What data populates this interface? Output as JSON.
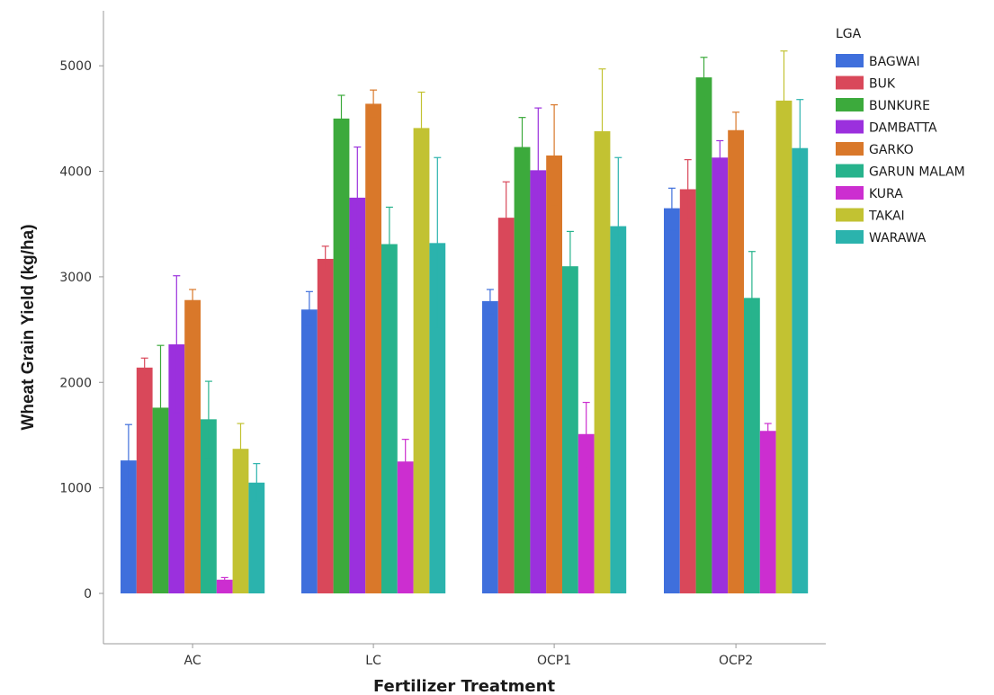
{
  "chart_data": {
    "type": "bar",
    "xlabel": "Fertilizer Treatment",
    "ylabel": "Wheat Grain Yield (kg/ha)",
    "categories": [
      "AC",
      "LC",
      "OCP1",
      "OCP2"
    ],
    "yticks": [
      0,
      1000,
      2000,
      3000,
      4000,
      5000
    ],
    "ylim": [
      -480,
      5500
    ],
    "grid": false,
    "legend": {
      "title": "LGA",
      "placement": "right"
    },
    "error_bars": true,
    "series": [
      {
        "name": "BAGWAI",
        "color": "#3f6fdc",
        "values": [
          1260,
          2690,
          2770,
          3650
        ],
        "err_low": [
          910,
          2540,
          2650,
          3440
        ],
        "err_high": [
          1600,
          2860,
          2880,
          3840
        ]
      },
      {
        "name": "BUK",
        "color": "#d9485a",
        "values": [
          2140,
          3170,
          3560,
          3830
        ],
        "err_low": [
          2060,
          3060,
          3230,
          3550
        ],
        "err_high": [
          2230,
          3290,
          3900,
          4110
        ]
      },
      {
        "name": "BUNKURE",
        "color": "#3caa3c",
        "values": [
          1760,
          4500,
          4230,
          4890
        ],
        "err_low": [
          1170,
          4280,
          3970,
          4700
        ],
        "err_high": [
          2350,
          4720,
          4510,
          5080
        ]
      },
      {
        "name": "DAMBATTA",
        "color": "#9b30dd",
        "values": [
          2360,
          3750,
          4010,
          4130
        ],
        "err_low": [
          1710,
          3270,
          3430,
          3970
        ],
        "err_high": [
          3010,
          4230,
          4600,
          4290
        ]
      },
      {
        "name": "GARKO",
        "color": "#d9782a",
        "values": [
          2780,
          4640,
          4150,
          4390
        ],
        "err_low": [
          2670,
          4510,
          3670,
          4220
        ],
        "err_high": [
          2880,
          4770,
          4630,
          4560
        ]
      },
      {
        "name": "GARUN MALAM",
        "color": "#27b38c",
        "values": [
          1650,
          3310,
          3100,
          2800
        ],
        "err_low": [
          1280,
          2940,
          2780,
          2360
        ],
        "err_high": [
          2010,
          3660,
          3430,
          3240
        ]
      },
      {
        "name": "KURA",
        "color": "#cc2ed0",
        "values": [
          130,
          1250,
          1510,
          1540
        ],
        "err_low": [
          100,
          1030,
          1180,
          1460
        ],
        "err_high": [
          150,
          1460,
          1810,
          1610
        ]
      },
      {
        "name": "TAKAI",
        "color": "#c2c232",
        "values": [
          1370,
          4410,
          4380,
          4670
        ],
        "err_low": [
          1120,
          4060,
          3780,
          4200
        ],
        "err_high": [
          1610,
          4750,
          4970,
          5140
        ]
      },
      {
        "name": "WARAWA",
        "color": "#2bb3ad",
        "values": [
          1050,
          3320,
          3480,
          4220
        ],
        "err_low": [
          870,
          2510,
          2830,
          3760
        ],
        "err_high": [
          1230,
          4130,
          4130,
          4680
        ]
      }
    ]
  }
}
